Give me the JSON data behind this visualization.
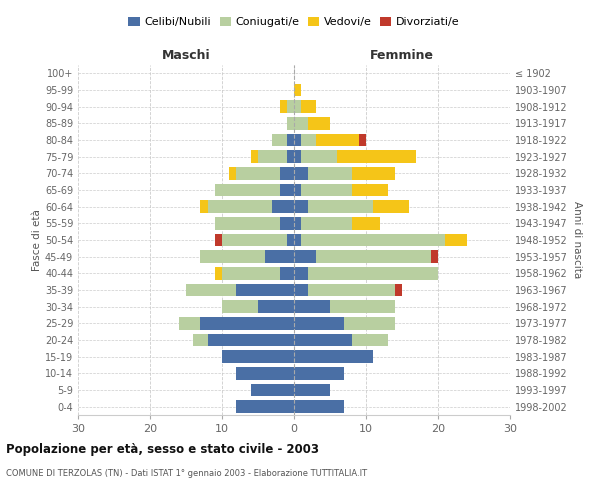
{
  "age_groups": [
    "0-4",
    "5-9",
    "10-14",
    "15-19",
    "20-24",
    "25-29",
    "30-34",
    "35-39",
    "40-44",
    "45-49",
    "50-54",
    "55-59",
    "60-64",
    "65-69",
    "70-74",
    "75-79",
    "80-84",
    "85-89",
    "90-94",
    "95-99",
    "100+"
  ],
  "birth_years": [
    "1998-2002",
    "1993-1997",
    "1988-1992",
    "1983-1987",
    "1978-1982",
    "1973-1977",
    "1968-1972",
    "1963-1967",
    "1958-1962",
    "1953-1957",
    "1948-1952",
    "1943-1947",
    "1938-1942",
    "1933-1937",
    "1928-1932",
    "1923-1927",
    "1918-1922",
    "1913-1917",
    "1908-1912",
    "1903-1907",
    "≤ 1902"
  ],
  "maschi": {
    "celibi": [
      8,
      6,
      8,
      10,
      12,
      13,
      5,
      8,
      2,
      4,
      1,
      2,
      3,
      2,
      2,
      1,
      1,
      0,
      0,
      0,
      0
    ],
    "coniugati": [
      0,
      0,
      0,
      0,
      2,
      3,
      5,
      7,
      8,
      9,
      9,
      9,
      9,
      9,
      6,
      4,
      2,
      1,
      1,
      0,
      0
    ],
    "vedovi": [
      0,
      0,
      0,
      0,
      0,
      0,
      0,
      0,
      1,
      0,
      0,
      0,
      1,
      0,
      1,
      1,
      0,
      0,
      1,
      0,
      0
    ],
    "divorziati": [
      0,
      0,
      0,
      0,
      0,
      0,
      0,
      0,
      0,
      0,
      1,
      0,
      0,
      0,
      0,
      0,
      0,
      0,
      0,
      0,
      0
    ]
  },
  "femmine": {
    "nubili": [
      7,
      5,
      7,
      11,
      8,
      7,
      5,
      2,
      2,
      3,
      1,
      1,
      2,
      1,
      2,
      1,
      1,
      0,
      0,
      0,
      0
    ],
    "coniugate": [
      0,
      0,
      0,
      0,
      5,
      7,
      9,
      12,
      18,
      16,
      20,
      7,
      9,
      7,
      6,
      5,
      2,
      2,
      1,
      0,
      0
    ],
    "vedove": [
      0,
      0,
      0,
      0,
      0,
      0,
      0,
      0,
      0,
      0,
      3,
      4,
      5,
      5,
      6,
      11,
      6,
      3,
      2,
      1,
      0
    ],
    "divorziate": [
      0,
      0,
      0,
      0,
      0,
      0,
      0,
      1,
      0,
      1,
      0,
      0,
      0,
      0,
      0,
      0,
      1,
      0,
      0,
      0,
      0
    ]
  },
  "colors": {
    "celibi_nubili": "#4a6fa5",
    "coniugati": "#b8cfa0",
    "vedovi": "#f5c518",
    "divorziati": "#c0392b"
  },
  "xlim": 30,
  "title": "Popolazione per età, sesso e stato civile - 2003",
  "subtitle": "COMUNE DI TERZOLAS (TN) - Dati ISTAT 1° gennaio 2003 - Elaborazione TUTTITALIA.IT",
  "xlabel_left": "Maschi",
  "xlabel_right": "Femmine",
  "ylabel_left": "Fasce di età",
  "ylabel_right": "Anni di nascita",
  "legend_labels": [
    "Celibi/Nubili",
    "Coniugati/e",
    "Vedovi/e",
    "Divorziati/e"
  ],
  "background_color": "#ffffff",
  "bar_height": 0.75
}
